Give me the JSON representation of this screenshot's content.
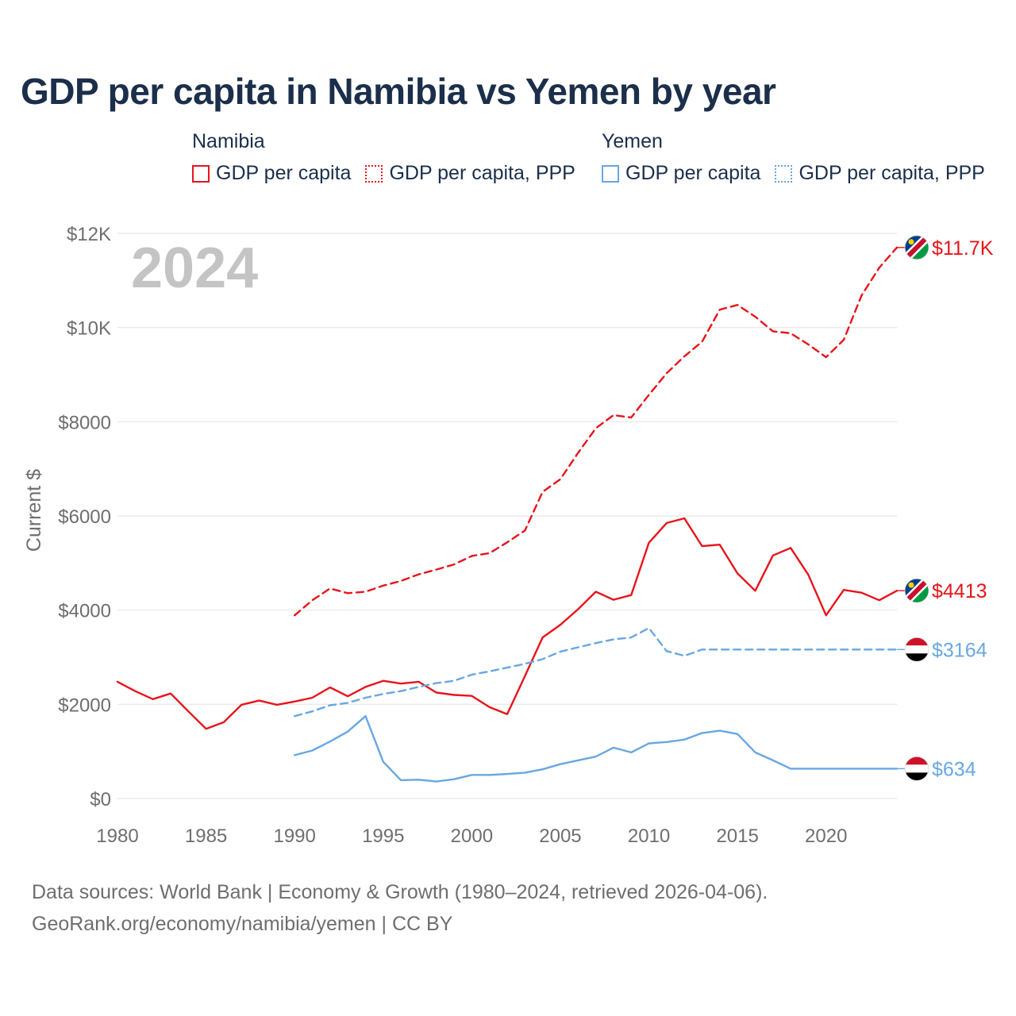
{
  "title": "GDP per capita in Namibia vs Yemen by year",
  "legend": {
    "groups": [
      {
        "name": "Namibia",
        "color": "#e8141b",
        "items": [
          "GDP per capita",
          "GDP per capita, PPP"
        ]
      },
      {
        "name": "Yemen",
        "color": "#68a7e1",
        "items": [
          "GDP per capita",
          "GDP per capita, PPP"
        ]
      }
    ]
  },
  "chart_data": {
    "type": "line",
    "title": "GDP per capita in Namibia vs Yemen by year",
    "ylabel": "Current $",
    "xlabel": "",
    "year_label": "2024",
    "xlim": [
      1980,
      2024
    ],
    "ylim": [
      0,
      12000
    ],
    "x_ticks": [
      1980,
      1985,
      1990,
      1995,
      2000,
      2005,
      2010,
      2015,
      2020
    ],
    "y_ticks": [
      0,
      2000,
      4000,
      6000,
      8000,
      10000,
      12000
    ],
    "y_tick_labels": [
      "$0",
      "$2000",
      "$4000",
      "$6000",
      "$8000",
      "$10K",
      "$12K"
    ],
    "grid": true,
    "series": [
      {
        "name": "Namibia GDP per capita",
        "country": "Namibia",
        "color": "#e8141b",
        "dash": "solid",
        "end_label": "$4413",
        "x": [
          1980,
          1981,
          1982,
          1983,
          1984,
          1985,
          1986,
          1987,
          1988,
          1989,
          1990,
          1991,
          1992,
          1993,
          1994,
          1995,
          1996,
          1997,
          1998,
          1999,
          2000,
          2001,
          2002,
          2003,
          2004,
          2005,
          2006,
          2007,
          2008,
          2009,
          2010,
          2011,
          2012,
          2013,
          2014,
          2015,
          2016,
          2017,
          2018,
          2019,
          2020,
          2021,
          2022,
          2023,
          2024
        ],
        "values": [
          2480,
          2280,
          2110,
          2230,
          1850,
          1480,
          1620,
          1990,
          2080,
          1990,
          2060,
          2140,
          2360,
          2170,
          2370,
          2500,
          2440,
          2480,
          2250,
          2200,
          2180,
          1940,
          1790,
          2600,
          3420,
          3690,
          4020,
          4390,
          4220,
          4320,
          5430,
          5850,
          5950,
          5360,
          5390,
          4780,
          4410,
          5160,
          5320,
          4750,
          3890,
          4430,
          4370,
          4210,
          4413
        ]
      },
      {
        "name": "Namibia GDP per capita, PPP",
        "country": "Namibia",
        "color": "#e8141b",
        "dash": "dashed",
        "end_label": "$11.7K",
        "x": [
          1990,
          1991,
          1992,
          1993,
          1994,
          1995,
          1996,
          1997,
          1998,
          1999,
          2000,
          2001,
          2002,
          2003,
          2004,
          2005,
          2006,
          2007,
          2008,
          2009,
          2010,
          2011,
          2012,
          2013,
          2014,
          2015,
          2016,
          2017,
          2018,
          2019,
          2020,
          2021,
          2022,
          2023,
          2024
        ],
        "values": [
          3890,
          4210,
          4460,
          4360,
          4390,
          4520,
          4620,
          4760,
          4860,
          4970,
          5150,
          5210,
          5440,
          5690,
          6510,
          6780,
          7340,
          7860,
          8140,
          8090,
          8570,
          9030,
          9390,
          9700,
          10380,
          10480,
          10230,
          9920,
          9880,
          9640,
          9370,
          9740,
          10680,
          11270,
          11700
        ]
      },
      {
        "name": "Yemen GDP per capita",
        "country": "Yemen",
        "color": "#68a7e1",
        "dash": "solid",
        "end_label": "$634",
        "x": [
          1990,
          1991,
          1992,
          1993,
          1994,
          1995,
          1996,
          1997,
          1998,
          1999,
          2000,
          2001,
          2002,
          2003,
          2004,
          2005,
          2006,
          2007,
          2008,
          2009,
          2010,
          2011,
          2012,
          2013,
          2014,
          2015,
          2016,
          2017,
          2018,
          2019,
          2020,
          2021,
          2022,
          2023,
          2024
        ],
        "values": [
          920,
          1020,
          1210,
          1420,
          1750,
          780,
          390,
          400,
          360,
          410,
          500,
          500,
          520,
          550,
          620,
          730,
          810,
          890,
          1080,
          980,
          1170,
          1200,
          1250,
          1390,
          1440,
          1370,
          980,
          810,
          634,
          634,
          634,
          634,
          634,
          634,
          634
        ]
      },
      {
        "name": "Yemen GDP per capita, PPP",
        "country": "Yemen",
        "color": "#68a7e1",
        "dash": "dashed",
        "end_label": "$3164",
        "x": [
          1990,
          1991,
          1992,
          1993,
          1994,
          1995,
          1996,
          1997,
          1998,
          1999,
          2000,
          2001,
          2002,
          2003,
          2004,
          2005,
          2006,
          2007,
          2008,
          2009,
          2010,
          2011,
          2012,
          2013,
          2014,
          2015,
          2016,
          2017,
          2018,
          2019,
          2020,
          2021,
          2022,
          2023,
          2024
        ],
        "values": [
          1750,
          1850,
          1980,
          2030,
          2140,
          2220,
          2280,
          2370,
          2450,
          2500,
          2630,
          2700,
          2780,
          2860,
          2960,
          3120,
          3210,
          3300,
          3380,
          3420,
          3620,
          3130,
          3030,
          3164,
          3164,
          3164,
          3164,
          3164,
          3164,
          3164,
          3164,
          3164,
          3164,
          3164,
          3164
        ]
      }
    ]
  },
  "footer": {
    "line1": "Data sources: World Bank | Economy & Growth (1980–2024, retrieved 2026-04-06).",
    "line2": "GeoRank.org/economy/namibia/yemen | CC BY"
  }
}
